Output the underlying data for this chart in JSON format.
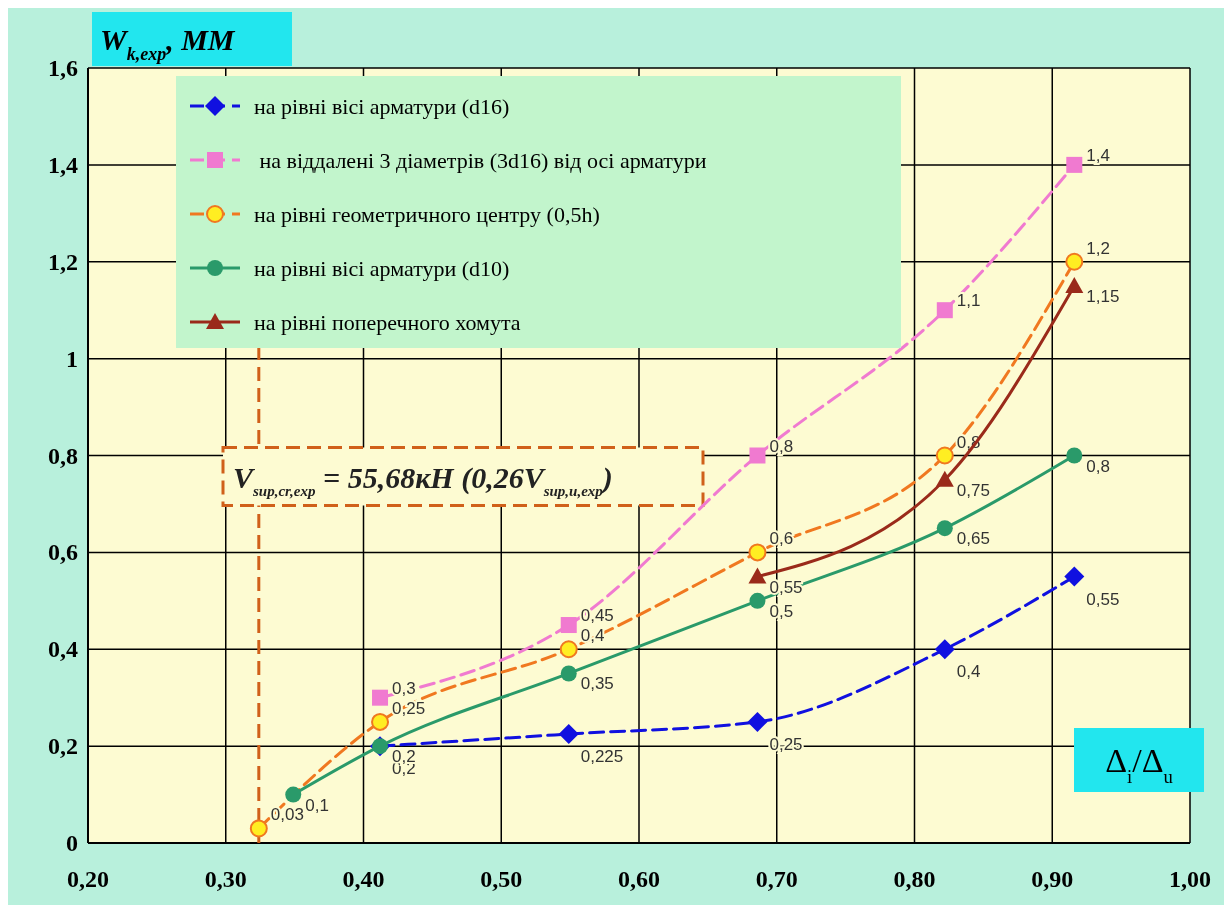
{
  "chart_data": {
    "type": "line",
    "ylabel": "W$_{k,exp}$, ММ",
    "xlabel": "Δ$_{i}$/Δ$_{u}$",
    "xlim": [
      0.2,
      1.0
    ],
    "xticks": [
      {
        "value": 0.2,
        "label": "0,20"
      },
      {
        "value": 0.3,
        "label": "0,30"
      },
      {
        "value": 0.4,
        "label": "0,40"
      },
      {
        "value": 0.5,
        "label": "0,50"
      },
      {
        "value": 0.6,
        "label": "0,60"
      },
      {
        "value": 0.7,
        "label": "0,70"
      },
      {
        "value": 0.8,
        "label": "0,80"
      },
      {
        "value": 0.9,
        "label": "0,90"
      },
      {
        "value": 1.0,
        "label": "1,00"
      }
    ],
    "ylim": [
      0,
      1.6
    ],
    "yticks": [
      0,
      {
        "value": 0.2,
        "label": "0,2"
      },
      {
        "value": 0.4,
        "label": "0,4"
      },
      {
        "value": 0.6,
        "label": "0,6"
      },
      {
        "value": 0.8,
        "label": "0,8"
      },
      1,
      {
        "value": 1.2,
        "label": "1,2"
      },
      {
        "value": 1.4,
        "label": "1,4"
      },
      {
        "value": 1.6,
        "label": "1,6"
      }
    ],
    "grid": true,
    "legend": "top left",
    "series": [
      {
        "name": "на рівні вісі арматури (d16)",
        "color": "#1010e0",
        "marker": "diamond",
        "line_style": "dashed",
        "x": [
          0.412,
          0.549,
          0.686,
          0.822,
          0.916
        ],
        "values": [
          0.2,
          0.225,
          0.25,
          0.4,
          0.55
        ],
        "value_labels": [
          "0,2",
          "0,225",
          "0,25",
          "0,4",
          "0,55"
        ]
      },
      {
        "name": " на віддалені 3 діаметрів (3d16) від осі арматури",
        "color": "#f07ad0",
        "marker": "square",
        "line_style": "dashed",
        "x": [
          0.412,
          0.549,
          0.686,
          0.822,
          0.916
        ],
        "values": [
          0.3,
          0.45,
          0.8,
          1.1,
          1.4
        ],
        "value_labels": [
          "0,3",
          "0,45",
          "0,8",
          "1,1",
          "1,4"
        ]
      },
      {
        "name": "на рівні геометричного центру (0,5h)",
        "color": "#f07820",
        "marker": "circle",
        "line_style": "dashed",
        "x": [
          0.324,
          0.412,
          0.549,
          0.686,
          0.822,
          0.916
        ],
        "values": [
          0.03,
          0.25,
          0.4,
          0.6,
          0.8,
          1.2
        ],
        "value_labels": [
          "0,03",
          "0,25",
          "0,4",
          "0,6",
          "0,8",
          "1,2"
        ]
      },
      {
        "name": "на рівні вісі арматури (d10)",
        "color": "#2a9a6a",
        "marker": "circle",
        "line_style": "solid",
        "x": [
          0.349,
          0.412,
          0.549,
          0.686,
          0.822,
          0.916
        ],
        "values": [
          0.1,
          0.2,
          0.35,
          0.5,
          0.65,
          0.8
        ],
        "value_labels": [
          "0,1",
          "0,2",
          "0,35",
          "0,5",
          "0,65",
          "0,8"
        ]
      },
      {
        "name": "на рівні поперечного хомута",
        "color": "#9a2a1a",
        "marker": "triangle",
        "line_style": "solid",
        "x": [
          0.686,
          0.822,
          0.916
        ],
        "values": [
          0.55,
          0.75,
          1.15
        ],
        "value_labels": [
          "0,55",
          "0,75",
          "1,15"
        ]
      }
    ],
    "ref_lines": [
      {
        "axis": "x",
        "value": 0.324,
        "color": "#d0601a",
        "line_style": "dashed"
      }
    ],
    "annotations": [
      "V$_{sup,cr,exp}$ = 55,68кН (0,26V$_{sup,u,exp}$)"
    ]
  }
}
